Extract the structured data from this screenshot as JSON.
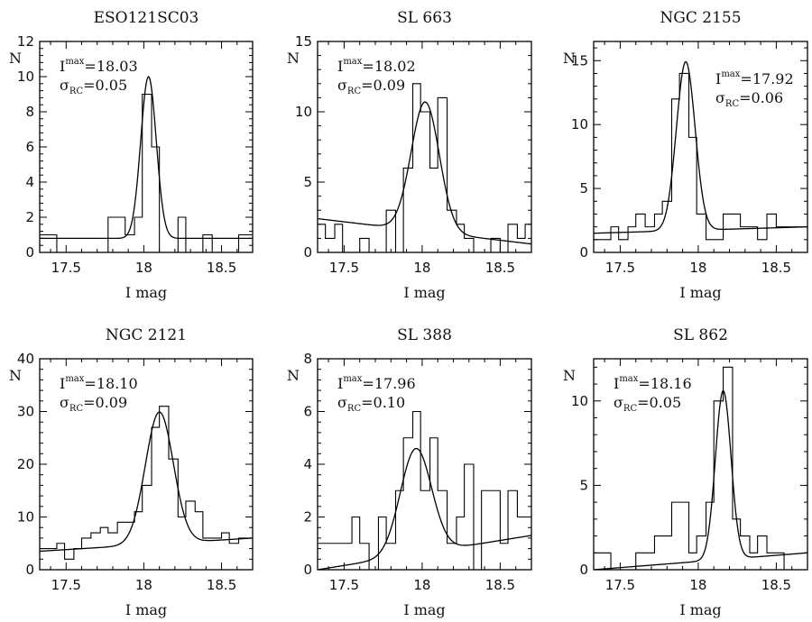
{
  "chart_data": [
    {
      "type": "histogram",
      "title": "ESO121SC03",
      "xlabel": "I mag",
      "ylabel": "N",
      "xlim": [
        17.33,
        18.7
      ],
      "ylim": [
        0,
        12
      ],
      "xticks": [
        17.5,
        18,
        18.5
      ],
      "yticks": [
        0,
        2,
        4,
        6,
        8,
        10,
        12
      ],
      "annotation": {
        "I_label": "I",
        "I_sup": "max",
        "I_value": "=18.03",
        "sigma_label": "σ",
        "sigma_sub": "RC",
        "sigma_value": "=0.05"
      },
      "fit": {
        "peak_mag": 18.03,
        "sigma": 0.05,
        "amplitude": 9.2,
        "background": [
          0.8,
          0.8
        ]
      },
      "bins": [
        [
          17.33,
          17.44,
          1
        ],
        [
          17.44,
          17.77,
          0
        ],
        [
          17.77,
          17.88,
          2
        ],
        [
          17.88,
          17.94,
          1
        ],
        [
          17.94,
          17.99,
          2
        ],
        [
          17.99,
          18.05,
          9
        ],
        [
          18.05,
          18.1,
          6
        ],
        [
          18.1,
          18.22,
          0
        ],
        [
          18.22,
          18.27,
          2
        ],
        [
          18.27,
          18.38,
          0
        ],
        [
          18.38,
          18.44,
          1
        ],
        [
          18.44,
          18.61,
          0
        ],
        [
          18.61,
          18.7,
          1
        ]
      ]
    },
    {
      "type": "histogram",
      "title": "SL 663",
      "xlabel": "I mag",
      "ylabel": "N",
      "xlim": [
        17.33,
        18.7
      ],
      "ylim": [
        0,
        15
      ],
      "xticks": [
        17.5,
        18,
        18.5
      ],
      "yticks": [
        0,
        5,
        10,
        15
      ],
      "annotation": {
        "I_label": "I",
        "I_sup": "max",
        "I_value": "=18.02",
        "sigma_label": "σ",
        "sigma_sub": "RC",
        "sigma_value": "=0.09"
      },
      "fit": {
        "peak_mag": 18.02,
        "sigma": 0.09,
        "amplitude": 9.2,
        "background": [
          2.4,
          0.6
        ]
      },
      "bins": [
        [
          17.33,
          17.38,
          2
        ],
        [
          17.38,
          17.44,
          1
        ],
        [
          17.44,
          17.49,
          2
        ],
        [
          17.49,
          17.6,
          0
        ],
        [
          17.6,
          17.66,
          1
        ],
        [
          17.66,
          17.77,
          0
        ],
        [
          17.77,
          17.83,
          3
        ],
        [
          17.83,
          17.88,
          0
        ],
        [
          17.88,
          17.94,
          6
        ],
        [
          17.94,
          17.99,
          12
        ],
        [
          17.99,
          18.05,
          10
        ],
        [
          18.05,
          18.1,
          6
        ],
        [
          18.1,
          18.16,
          11
        ],
        [
          18.16,
          18.22,
          3
        ],
        [
          18.22,
          18.27,
          2
        ],
        [
          18.27,
          18.33,
          1
        ],
        [
          18.33,
          18.44,
          0
        ],
        [
          18.44,
          18.5,
          1
        ],
        [
          18.5,
          18.55,
          0
        ],
        [
          18.55,
          18.61,
          2
        ],
        [
          18.61,
          18.66,
          1
        ],
        [
          18.66,
          18.7,
          2
        ]
      ]
    },
    {
      "type": "histogram",
      "title": "NGC 2155",
      "xlabel": "I mag",
      "ylabel": "N",
      "xlim": [
        17.33,
        18.7
      ],
      "ylim": [
        0,
        16.5
      ],
      "xticks": [
        17.5,
        18,
        18.5
      ],
      "yticks": [
        0,
        5,
        10,
        15
      ],
      "annotation": {
        "I_label": "I",
        "I_sup": "max",
        "I_value": "=17.92",
        "sigma_label": "σ",
        "sigma_sub": "RC",
        "sigma_value": "=0.06"
      },
      "fit": {
        "peak_mag": 17.92,
        "sigma": 0.06,
        "amplitude": 13.2,
        "background": [
          1.5,
          2.0
        ]
      },
      "bins": [
        [
          17.33,
          17.44,
          1
        ],
        [
          17.44,
          17.49,
          2
        ],
        [
          17.49,
          17.55,
          1
        ],
        [
          17.55,
          17.6,
          2
        ],
        [
          17.6,
          17.66,
          3
        ],
        [
          17.66,
          17.72,
          2
        ],
        [
          17.72,
          17.77,
          3
        ],
        [
          17.77,
          17.83,
          4
        ],
        [
          17.83,
          17.88,
          12
        ],
        [
          17.88,
          17.94,
          14
        ],
        [
          17.94,
          17.99,
          9
        ],
        [
          17.99,
          18.05,
          3
        ],
        [
          18.05,
          18.16,
          1
        ],
        [
          18.16,
          18.27,
          3
        ],
        [
          18.27,
          18.38,
          2
        ],
        [
          18.38,
          18.44,
          1
        ],
        [
          18.44,
          18.5,
          3
        ],
        [
          18.5,
          18.55,
          2
        ],
        [
          18.55,
          18.7,
          2
        ]
      ]
    },
    {
      "type": "histogram",
      "title": "NGC 2121",
      "xlabel": "I mag",
      "ylabel": "N",
      "xlim": [
        17.33,
        18.7
      ],
      "ylim": [
        0,
        40
      ],
      "xticks": [
        17.5,
        18,
        18.5
      ],
      "yticks": [
        0,
        10,
        20,
        30,
        40
      ],
      "annotation": {
        "I_label": "I",
        "I_sup": "max",
        "I_value": "=18.10",
        "sigma_label": "σ",
        "sigma_sub": "RC",
        "sigma_value": "=0.09"
      },
      "fit": {
        "peak_mag": 18.1,
        "sigma": 0.09,
        "amplitude": 25,
        "background": [
          3.5,
          6.0
        ]
      },
      "bins": [
        [
          17.33,
          17.44,
          4
        ],
        [
          17.44,
          17.49,
          5
        ],
        [
          17.49,
          17.55,
          2
        ],
        [
          17.55,
          17.6,
          4
        ],
        [
          17.6,
          17.66,
          6
        ],
        [
          17.66,
          17.72,
          7
        ],
        [
          17.72,
          17.77,
          8
        ],
        [
          17.77,
          17.83,
          7
        ],
        [
          17.83,
          17.88,
          9
        ],
        [
          17.88,
          17.94,
          9
        ],
        [
          17.94,
          17.99,
          11
        ],
        [
          17.99,
          18.05,
          16
        ],
        [
          18.05,
          18.1,
          27
        ],
        [
          18.1,
          18.16,
          31
        ],
        [
          18.16,
          18.22,
          21
        ],
        [
          18.22,
          18.27,
          10
        ],
        [
          18.27,
          18.33,
          13
        ],
        [
          18.33,
          18.38,
          11
        ],
        [
          18.38,
          18.44,
          6
        ],
        [
          18.44,
          18.5,
          6
        ],
        [
          18.5,
          18.55,
          7
        ],
        [
          18.55,
          18.61,
          5
        ],
        [
          18.61,
          18.7,
          6
        ]
      ]
    },
    {
      "type": "histogram",
      "title": "SL 388",
      "xlabel": "I mag",
      "ylabel": "N",
      "xlim": [
        17.33,
        18.7
      ],
      "ylim": [
        0,
        8
      ],
      "xticks": [
        17.5,
        18,
        18.5
      ],
      "yticks": [
        0,
        2,
        4,
        6,
        8
      ],
      "annotation": {
        "I_label": "I",
        "I_sup": "max",
        "I_value": "=17.96",
        "sigma_label": "σ",
        "sigma_sub": "RC",
        "sigma_value": "=0.10"
      },
      "fit": {
        "peak_mag": 17.96,
        "sigma": 0.1,
        "amplitude": 4.0,
        "background": [
          0.0,
          1.3
        ]
      },
      "bins": [
        [
          17.33,
          17.55,
          1
        ],
        [
          17.55,
          17.6,
          2
        ],
        [
          17.6,
          17.66,
          1
        ],
        [
          17.66,
          17.72,
          0
        ],
        [
          17.72,
          17.77,
          2
        ],
        [
          17.77,
          17.83,
          1
        ],
        [
          17.83,
          17.88,
          3
        ],
        [
          17.88,
          17.94,
          5
        ],
        [
          17.94,
          17.99,
          6
        ],
        [
          17.99,
          18.05,
          3
        ],
        [
          18.05,
          18.1,
          5
        ],
        [
          18.1,
          18.16,
          3
        ],
        [
          18.16,
          18.22,
          1
        ],
        [
          18.22,
          18.27,
          2
        ],
        [
          18.27,
          18.33,
          4
        ],
        [
          18.33,
          18.38,
          0
        ],
        [
          18.38,
          18.44,
          3
        ],
        [
          18.44,
          18.5,
          3
        ],
        [
          18.5,
          18.55,
          1
        ],
        [
          18.55,
          18.61,
          3
        ],
        [
          18.61,
          18.7,
          2
        ]
      ]
    },
    {
      "type": "histogram",
      "title": "SL 862",
      "xlabel": "I mag",
      "ylabel": "N",
      "xlim": [
        17.33,
        18.7
      ],
      "ylim": [
        0,
        12.5
      ],
      "xticks": [
        17.5,
        18,
        18.5
      ],
      "yticks": [
        0,
        5,
        10
      ],
      "annotation": {
        "I_label": "I",
        "I_sup": "max",
        "I_value": "=18.16",
        "sigma_label": "σ",
        "sigma_sub": "RC",
        "sigma_value": "=0.05"
      },
      "fit": {
        "peak_mag": 18.16,
        "sigma": 0.05,
        "amplitude": 10,
        "background": [
          0.0,
          1.0
        ]
      },
      "bins": [
        [
          17.33,
          17.44,
          1
        ],
        [
          17.44,
          17.6,
          0
        ],
        [
          17.6,
          17.72,
          1
        ],
        [
          17.72,
          17.83,
          2
        ],
        [
          17.83,
          17.94,
          4
        ],
        [
          17.94,
          17.99,
          1
        ],
        [
          17.99,
          18.05,
          2
        ],
        [
          18.05,
          18.1,
          4
        ],
        [
          18.1,
          18.16,
          10
        ],
        [
          18.16,
          18.22,
          12
        ],
        [
          18.22,
          18.27,
          3
        ],
        [
          18.27,
          18.33,
          2
        ],
        [
          18.33,
          18.38,
          1
        ],
        [
          18.38,
          18.44,
          2
        ],
        [
          18.44,
          18.55,
          1
        ],
        [
          18.55,
          18.7,
          0
        ]
      ]
    }
  ]
}
